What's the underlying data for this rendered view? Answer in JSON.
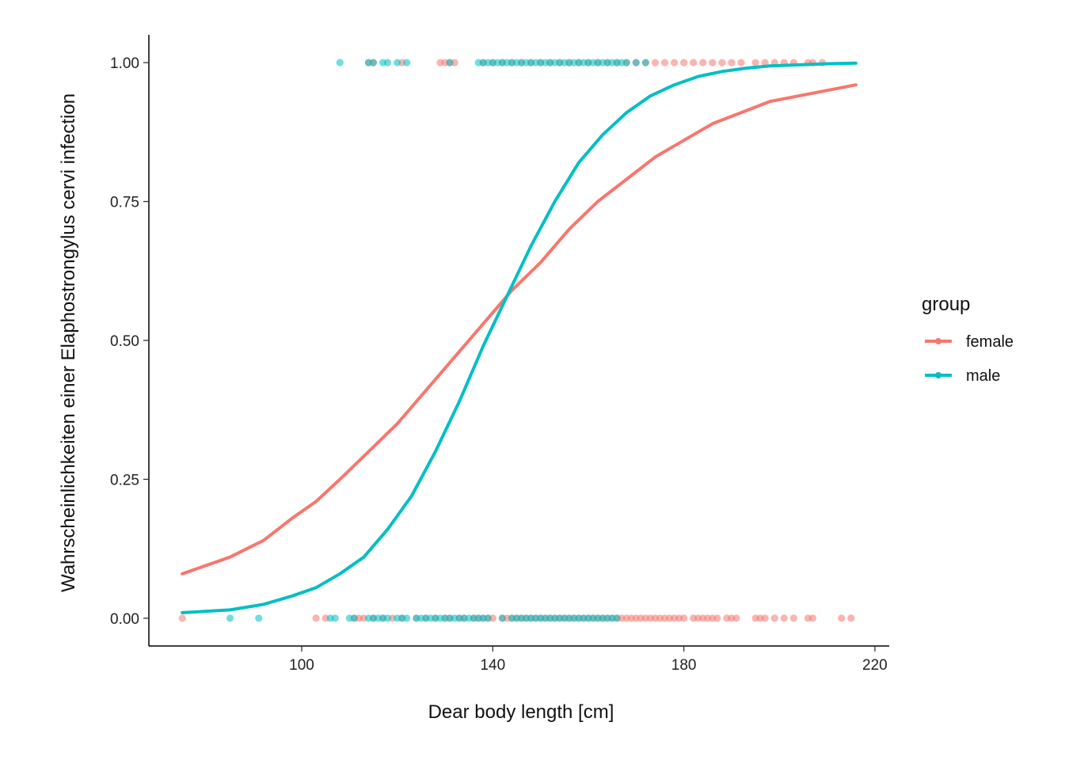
{
  "chart_data": {
    "type": "scatter",
    "title": "",
    "xlabel": "Dear body length [cm]",
    "ylabel": "Wahrscheinlichkeiten einer Elaphostrongylus cervi infection",
    "xlim": [
      68,
      223
    ],
    "ylim": [
      -0.05,
      1.05
    ],
    "x_ticks": [
      100,
      140,
      180,
      220
    ],
    "x_tick_labels": [
      "100",
      "140",
      "180",
      "220"
    ],
    "y_ticks": [
      0,
      0.25,
      0.5,
      0.75,
      1
    ],
    "y_tick_labels": [
      "0.00",
      "0.25",
      "0.50",
      "0.75",
      "1.00"
    ],
    "grid": false,
    "legend": {
      "title": "group",
      "position": "right",
      "entries": [
        "female",
        "male"
      ]
    },
    "series": [
      {
        "name": "female",
        "color": "#F8766D",
        "points_y0_x": [
          75,
          103,
          105,
          111,
          112,
          113,
          115,
          117,
          119,
          121,
          124,
          126,
          128,
          130,
          131,
          133,
          134,
          136,
          137,
          138,
          139,
          140,
          142,
          143,
          144,
          145,
          146,
          147,
          148,
          149,
          150,
          151,
          152,
          153,
          154,
          155,
          156,
          157,
          158,
          159,
          160,
          161,
          162,
          163,
          164,
          165,
          166,
          167,
          168,
          169,
          170,
          171,
          172,
          173,
          174,
          175,
          176,
          177,
          178,
          179,
          180,
          182,
          183,
          184,
          185,
          186,
          187,
          189,
          190,
          191,
          195,
          196,
          197,
          199,
          201,
          203,
          206,
          207,
          213,
          215
        ],
        "points_y1_x": [
          114,
          115,
          121,
          129,
          130,
          131,
          132,
          138,
          140,
          142,
          144,
          146,
          148,
          150,
          152,
          154,
          156,
          158,
          160,
          162,
          164,
          166,
          168,
          170,
          172,
          174,
          176,
          178,
          180,
          182,
          184,
          186,
          188,
          190,
          192,
          195,
          197,
          199,
          201,
          203,
          206,
          207,
          209
        ],
        "curve": {
          "x": [
            75,
            85,
            92,
            98,
            103,
            108,
            114,
            120,
            126,
            132,
            138,
            144,
            150,
            156,
            162,
            168,
            174,
            180,
            186,
            192,
            198,
            204,
            210,
            216
          ],
          "y": [
            0.08,
            0.11,
            0.14,
            0.18,
            0.21,
            0.25,
            0.3,
            0.35,
            0.41,
            0.47,
            0.53,
            0.59,
            0.64,
            0.7,
            0.75,
            0.79,
            0.83,
            0.86,
            0.89,
            0.91,
            0.93,
            0.94,
            0.95,
            0.96
          ]
        }
      },
      {
        "name": "male",
        "color": "#00BFC4",
        "points_y0_x": [
          85,
          91,
          106,
          107,
          110,
          111,
          114,
          115,
          116,
          117,
          118,
          120,
          121,
          122,
          124,
          125,
          126,
          127,
          128,
          129,
          130,
          131,
          132,
          133,
          134,
          135,
          136,
          137,
          138,
          139,
          142,
          144,
          145,
          146,
          147,
          148,
          149,
          150,
          151,
          152,
          153,
          154,
          155,
          156,
          157,
          158,
          159,
          160,
          161,
          162,
          163,
          164,
          165,
          166
        ],
        "points_y1_x": [
          108,
          114,
          115,
          117,
          118,
          120,
          122,
          131,
          137,
          138,
          139,
          140,
          141,
          142,
          143,
          144,
          145,
          146,
          147,
          148,
          149,
          150,
          151,
          152,
          153,
          154,
          155,
          156,
          157,
          158,
          159,
          160,
          161,
          162,
          163,
          164,
          165,
          166,
          167,
          168,
          170,
          172
        ],
        "curve": {
          "x": [
            75,
            85,
            92,
            98,
            103,
            108,
            113,
            118,
            123,
            128,
            133,
            138,
            143,
            148,
            153,
            158,
            163,
            168,
            173,
            178,
            183,
            188,
            193,
            198,
            204,
            210,
            216
          ],
          "y": [
            0.01,
            0.015,
            0.025,
            0.04,
            0.055,
            0.08,
            0.11,
            0.16,
            0.22,
            0.3,
            0.39,
            0.49,
            0.58,
            0.67,
            0.75,
            0.82,
            0.87,
            0.91,
            0.94,
            0.96,
            0.975,
            0.984,
            0.99,
            0.994,
            0.996,
            0.998,
            0.999
          ]
        }
      }
    ]
  }
}
